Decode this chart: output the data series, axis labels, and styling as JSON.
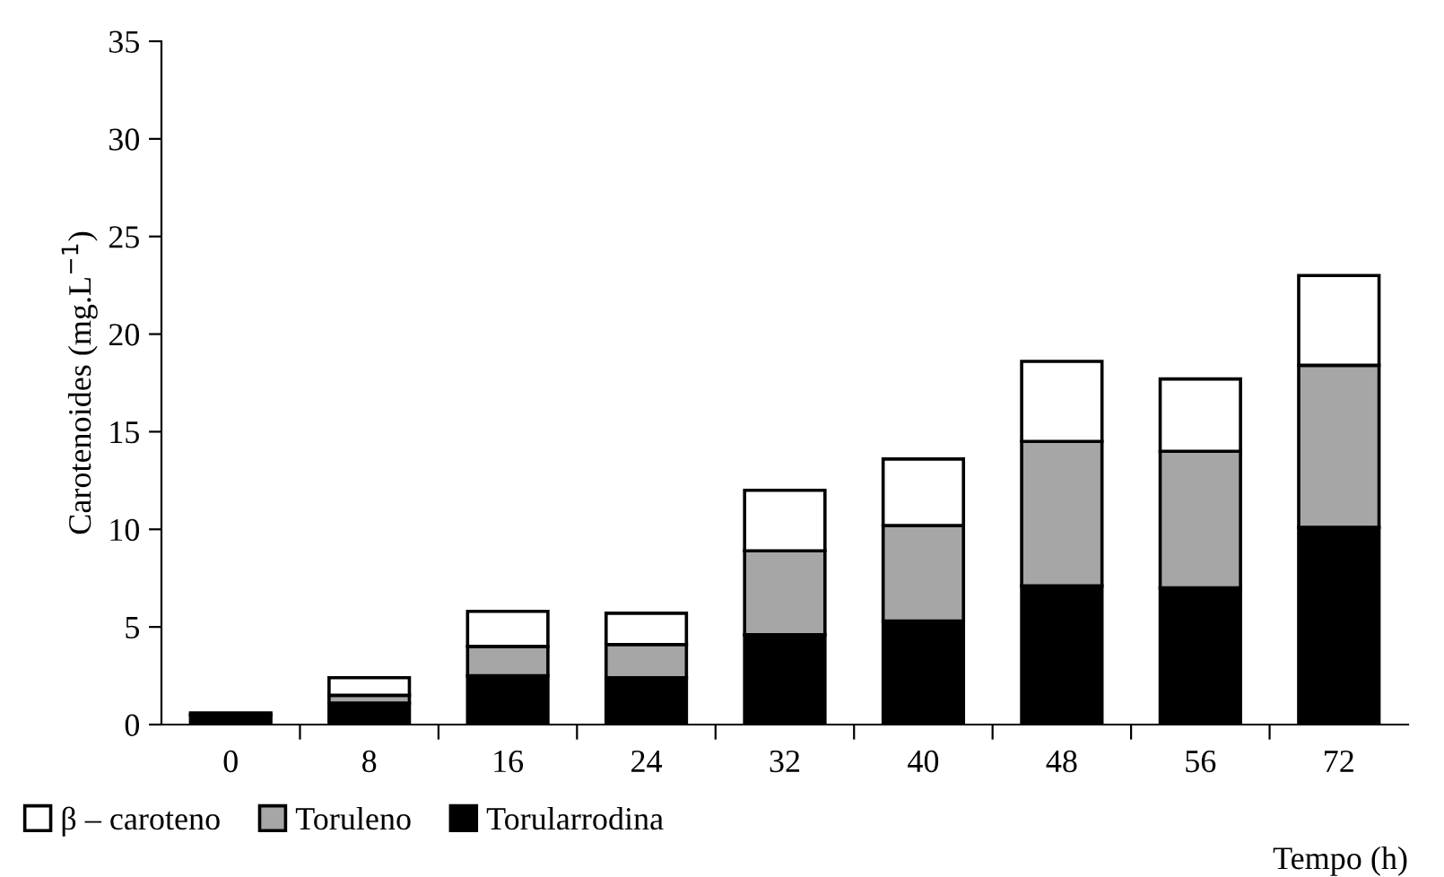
{
  "chart_data": {
    "type": "bar",
    "stacked": true,
    "xlabel": "Tempo (h)",
    "ylabel": "Carotenoides (mg.L$^{−1}$)",
    "categories": [
      "0",
      "8",
      "16",
      "24",
      "32",
      "40",
      "48",
      "56",
      "72"
    ],
    "series": [
      {
        "name": "Torularrodina",
        "color": "#000000",
        "values": [
          0.5,
          1.1,
          2.5,
          2.4,
          4.6,
          5.3,
          7.1,
          7.0,
          10.1
        ]
      },
      {
        "name": "Toruleno",
        "color": "#a6a6a6",
        "values": [
          null,
          0.4,
          1.5,
          1.7,
          4.3,
          4.9,
          7.4,
          7.0,
          8.3
        ]
      },
      {
        "name": "β – caroteno",
        "color": "#ffffff",
        "values": [
          0.1,
          0.9,
          1.8,
          1.6,
          3.1,
          3.4,
          4.1,
          3.7,
          4.6
        ]
      }
    ],
    "ylim": [
      0,
      35
    ],
    "yticks": [
      0,
      5,
      10,
      15,
      20,
      25,
      30,
      35
    ],
    "grid": false,
    "legend": "bottom left"
  }
}
